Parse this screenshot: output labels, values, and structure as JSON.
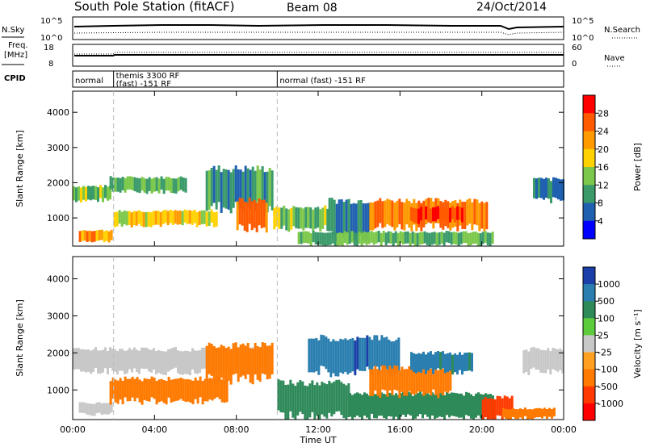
{
  "header": {
    "station": "South Pole Station (fitACF)",
    "beam": "Beam 08",
    "date": "24/Oct/2014"
  },
  "strips": {
    "nsky_label": "N.Sky",
    "nsky_ticks": [
      "10^5",
      "10^0"
    ],
    "nsearch_label": "N.Search",
    "nsearch_ticks": [
      "10^5",
      "10^0"
    ],
    "freq_label_1": "Freq.",
    "freq_label_2": "[MHz]",
    "freq_ticks": [
      "18",
      "8"
    ],
    "nave_label": "Nave",
    "nave_ticks": [
      "60",
      "0"
    ],
    "cpid_label": "CPID",
    "cpid_segments": [
      {
        "lines": [
          "normal"
        ],
        "start_hour": 0,
        "end_hour": 2
      },
      {
        "lines": [
          "themis 3300 RF",
          "(fast) -151 RF"
        ],
        "start_hour": 2,
        "end_hour": 10
      },
      {
        "lines": [
          "normal (fast) -151 RF"
        ],
        "start_hour": 10,
        "end_hour": 24
      }
    ]
  },
  "colorbars": {
    "power": {
      "label": "Power [dB]",
      "ticks": [
        "28",
        "24",
        "20",
        "16",
        "12",
        "8",
        "4"
      ],
      "colors": [
        "#ff0000",
        "#ff5a00",
        "#ff9a00",
        "#ffd200",
        "#7cc84a",
        "#3a9a6a",
        "#2060b0",
        "#0000ff"
      ]
    },
    "velocity": {
      "label": "Velocity [m s⁻¹]",
      "ticks": [
        "1000",
        "500",
        "100",
        "25",
        "-25",
        "-100",
        "-500",
        "-1000"
      ],
      "colors": [
        "#1a3fa8",
        "#2a7fb0",
        "#2f8a5a",
        "#5dcc3c",
        "#c8c8c8",
        "#ffa020",
        "#ff7a00",
        "#ff3a00",
        "#ff0000"
      ]
    }
  },
  "chart_data": [
    {
      "type": "heatmap",
      "title": "Power",
      "xlabel": "",
      "ylabel": "Slant Range [km]",
      "xlim_hours": [
        0,
        24
      ],
      "ylim": [
        200,
        4600
      ],
      "yticks": [
        "1000",
        "2000",
        "3000",
        "4000"
      ],
      "xticks": [
        "00:00",
        "04:00",
        "08:00",
        "12:00",
        "16:00",
        "20:00",
        "00:00"
      ],
      "colorbar": "power",
      "bands": [
        {
          "t0": 0.0,
          "t1": 1.8,
          "r0": 1500,
          "r1": 1900,
          "value": 14
        },
        {
          "t0": 0.3,
          "t1": 1.9,
          "r0": 350,
          "r1": 650,
          "value": 22
        },
        {
          "t0": 1.8,
          "t1": 5.5,
          "r0": 1750,
          "r1": 2150,
          "value": 12
        },
        {
          "t0": 2.0,
          "t1": 7.0,
          "r0": 800,
          "r1": 1200,
          "value": 18
        },
        {
          "t0": 6.5,
          "t1": 9.8,
          "r0": 1300,
          "r1": 2400,
          "value": 10
        },
        {
          "t0": 8.0,
          "t1": 9.5,
          "r0": 700,
          "r1": 1500,
          "value": 26
        },
        {
          "t0": 9.8,
          "t1": 12.5,
          "r0": 700,
          "r1": 1300,
          "value": 14
        },
        {
          "t0": 12.5,
          "t1": 14.5,
          "r0": 500,
          "r1": 1500,
          "value": 8
        },
        {
          "t0": 14.5,
          "t1": 20.3,
          "r0": 750,
          "r1": 1500,
          "value": 24
        },
        {
          "t0": 16.5,
          "t1": 19.0,
          "r0": 900,
          "r1": 1300,
          "value": 28
        },
        {
          "t0": 11.0,
          "t1": 20.5,
          "r0": 250,
          "r1": 600,
          "value": 12
        },
        {
          "t0": 22.5,
          "t1": 24.0,
          "r0": 1500,
          "r1": 2100,
          "value": 8
        }
      ]
    },
    {
      "type": "heatmap",
      "title": "Velocity",
      "xlabel": "Time UT",
      "ylabel": "Slant Range [km]",
      "xlim_hours": [
        0,
        24
      ],
      "ylim": [
        200,
        4600
      ],
      "yticks": [
        "1000",
        "2000",
        "3000",
        "4000"
      ],
      "xticks": [
        "00:00",
        "04:00",
        "08:00",
        "12:00",
        "16:00",
        "20:00",
        "00:00"
      ],
      "colorbar": "velocity",
      "bands": [
        {
          "t0": 0.0,
          "t1": 9.5,
          "r0": 1500,
          "r1": 2100,
          "value": 0
        },
        {
          "t0": 0.3,
          "t1": 1.9,
          "r0": 350,
          "r1": 650,
          "value": 0
        },
        {
          "t0": 1.8,
          "t1": 7.5,
          "r0": 700,
          "r1": 1300,
          "value": -150
        },
        {
          "t0": 6.5,
          "t1": 9.8,
          "r0": 1300,
          "r1": 2200,
          "value": -200
        },
        {
          "t0": 10.0,
          "t1": 13.5,
          "r0": 300,
          "r1": 1200,
          "value": 200
        },
        {
          "t0": 11.5,
          "t1": 16.0,
          "r0": 1500,
          "r1": 2400,
          "value": 800
        },
        {
          "t0": 13.5,
          "t1": 20.5,
          "r0": 250,
          "r1": 900,
          "value": 200
        },
        {
          "t0": 14.5,
          "t1": 18.5,
          "r0": 900,
          "r1": 1600,
          "value": -200
        },
        {
          "t0": 16.5,
          "t1": 19.5,
          "r0": 1500,
          "r1": 2000,
          "value": 700
        },
        {
          "t0": 20.0,
          "t1": 21.5,
          "r0": 250,
          "r1": 800,
          "value": -700
        },
        {
          "t0": 22.0,
          "t1": 24.0,
          "r0": 1500,
          "r1": 2100,
          "value": 0
        },
        {
          "t0": 21.0,
          "t1": 23.5,
          "r0": 250,
          "r1": 500,
          "value": -300
        }
      ]
    }
  ],
  "axis_label_x": "Time UT"
}
